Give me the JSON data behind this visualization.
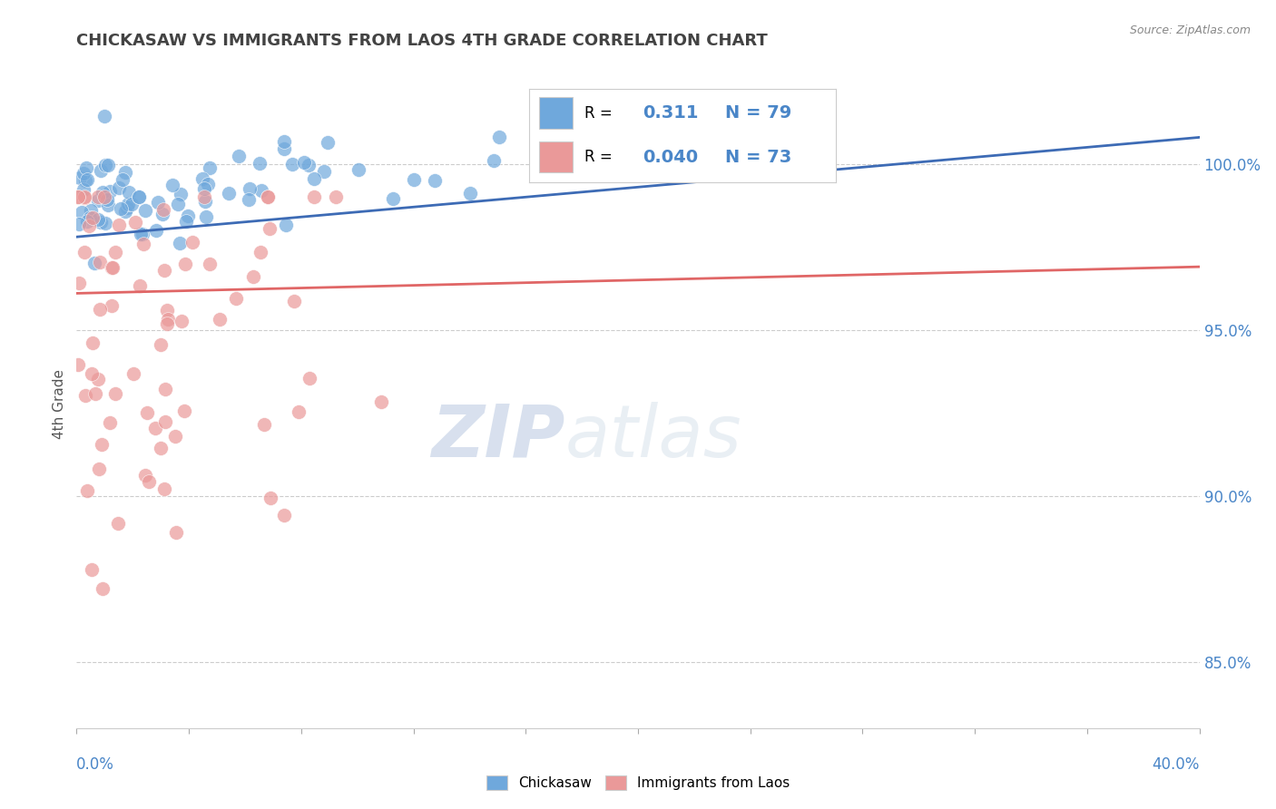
{
  "title": "CHICKASAW VS IMMIGRANTS FROM LAOS 4TH GRADE CORRELATION CHART",
  "source_text": "Source: ZipAtlas.com",
  "ylabel": "4th Grade",
  "xlim": [
    0.0,
    40.0
  ],
  "ylim": [
    83.0,
    102.5
  ],
  "chickasaw_R": 0.311,
  "chickasaw_N": 79,
  "laos_R": 0.04,
  "laos_N": 73,
  "blue_color": "#6fa8dc",
  "pink_color": "#ea9999",
  "blue_line_color": "#3d6bb5",
  "pink_line_color": "#e06666",
  "legend_label1": "Chickasaw",
  "legend_label2": "Immigrants from Laos",
  "watermark_zip": "ZIP",
  "watermark_atlas": "atlas",
  "background_color": "#ffffff",
  "grid_color": "#cccccc",
  "title_color": "#434343",
  "axis_label_color": "#4a86c8",
  "ytick_positions": [
    85.0,
    90.0,
    95.0,
    100.0
  ],
  "ytick_labels": [
    "85.0%",
    "90.0%",
    "95.0%",
    "100.0%"
  ],
  "blue_trend": [
    97.8,
    100.8
  ],
  "pink_trend": [
    96.1,
    96.9
  ]
}
